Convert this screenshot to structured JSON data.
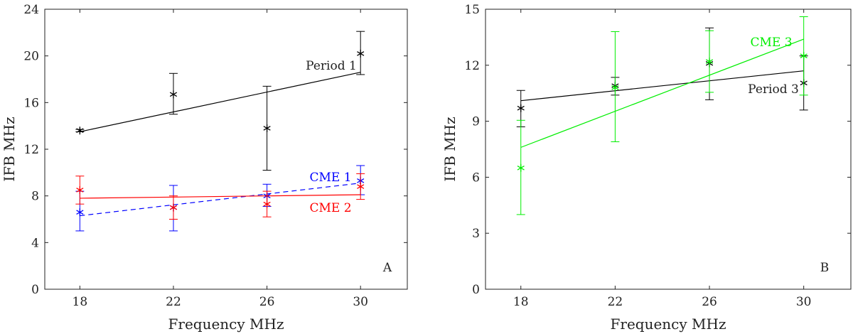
{
  "chart_data": [
    {
      "type": "line",
      "panel_label": "A",
      "xlabel": "Frequency MHz",
      "ylabel": "IFB MHz",
      "xlim": [
        16.5,
        32
      ],
      "ylim": [
        0,
        24
      ],
      "xticks": [
        18,
        22,
        26,
        30
      ],
      "yticks": [
        0,
        4,
        8,
        12,
        16,
        20,
        24
      ],
      "grid": false,
      "series": [
        {
          "name": "Period 1",
          "color": "#000000",
          "line_style": "solid",
          "x": [
            18,
            22,
            26,
            30
          ],
          "y": [
            13.6,
            16.7,
            13.8,
            20.2
          ],
          "err_low": [
            13.5,
            15.0,
            10.2,
            18.4
          ],
          "err_high": [
            13.7,
            18.5,
            17.4,
            22.1
          ],
          "fit": [
            13.5,
            18.6
          ]
        },
        {
          "name": "CME 1",
          "color": "#0000ff",
          "line_style": "dashed",
          "x": [
            18,
            22,
            26,
            30
          ],
          "y": [
            6.6,
            7.0,
            8.0,
            9.3
          ],
          "err_low": [
            5.0,
            5.0,
            7.1,
            8.1
          ],
          "err_high": [
            8.4,
            8.9,
            9.0,
            10.6
          ],
          "fit": [
            6.3,
            9.1
          ]
        },
        {
          "name": "CME 2",
          "color": "#ff0000",
          "line_style": "solid",
          "x": [
            18,
            22,
            26,
            30
          ],
          "y": [
            8.5,
            7.0,
            7.3,
            8.8
          ],
          "err_low": [
            7.3,
            6.0,
            6.2,
            7.7
          ],
          "err_high": [
            9.7,
            8.0,
            8.4,
            9.9
          ],
          "fit": [
            7.8,
            8.1
          ]
        }
      ],
      "annotations": [
        "Period 1",
        "CME 1",
        "CME 2"
      ]
    },
    {
      "type": "line",
      "panel_label": "B",
      "xlabel": "Frequency MHz",
      "ylabel": "IFB MHz",
      "xlim": [
        16.5,
        32
      ],
      "ylim": [
        0,
        15
      ],
      "xticks": [
        18,
        22,
        26,
        30
      ],
      "yticks": [
        0,
        3,
        6,
        9,
        12,
        15
      ],
      "grid": false,
      "series": [
        {
          "name": "Period 3",
          "color": "#000000",
          "line_style": "solid",
          "x": [
            18,
            22,
            26,
            30
          ],
          "y": [
            9.7,
            10.9,
            12.1,
            11.05
          ],
          "err_low": [
            8.7,
            10.4,
            10.15,
            9.6
          ],
          "err_high": [
            10.65,
            11.35,
            14.0,
            12.5
          ],
          "fit": [
            10.1,
            11.7
          ]
        },
        {
          "name": "CME 3",
          "color": "#00ee00",
          "line_style": "solid",
          "x": [
            18,
            22,
            26,
            30
          ],
          "y": [
            6.5,
            10.8,
            12.2,
            12.5
          ],
          "err_low": [
            4.0,
            7.9,
            10.55,
            10.4
          ],
          "err_high": [
            9.05,
            13.8,
            13.85,
            14.6
          ],
          "fit": [
            7.6,
            13.4
          ]
        }
      ],
      "annotations": [
        "CME 3",
        "Period 3"
      ]
    }
  ]
}
